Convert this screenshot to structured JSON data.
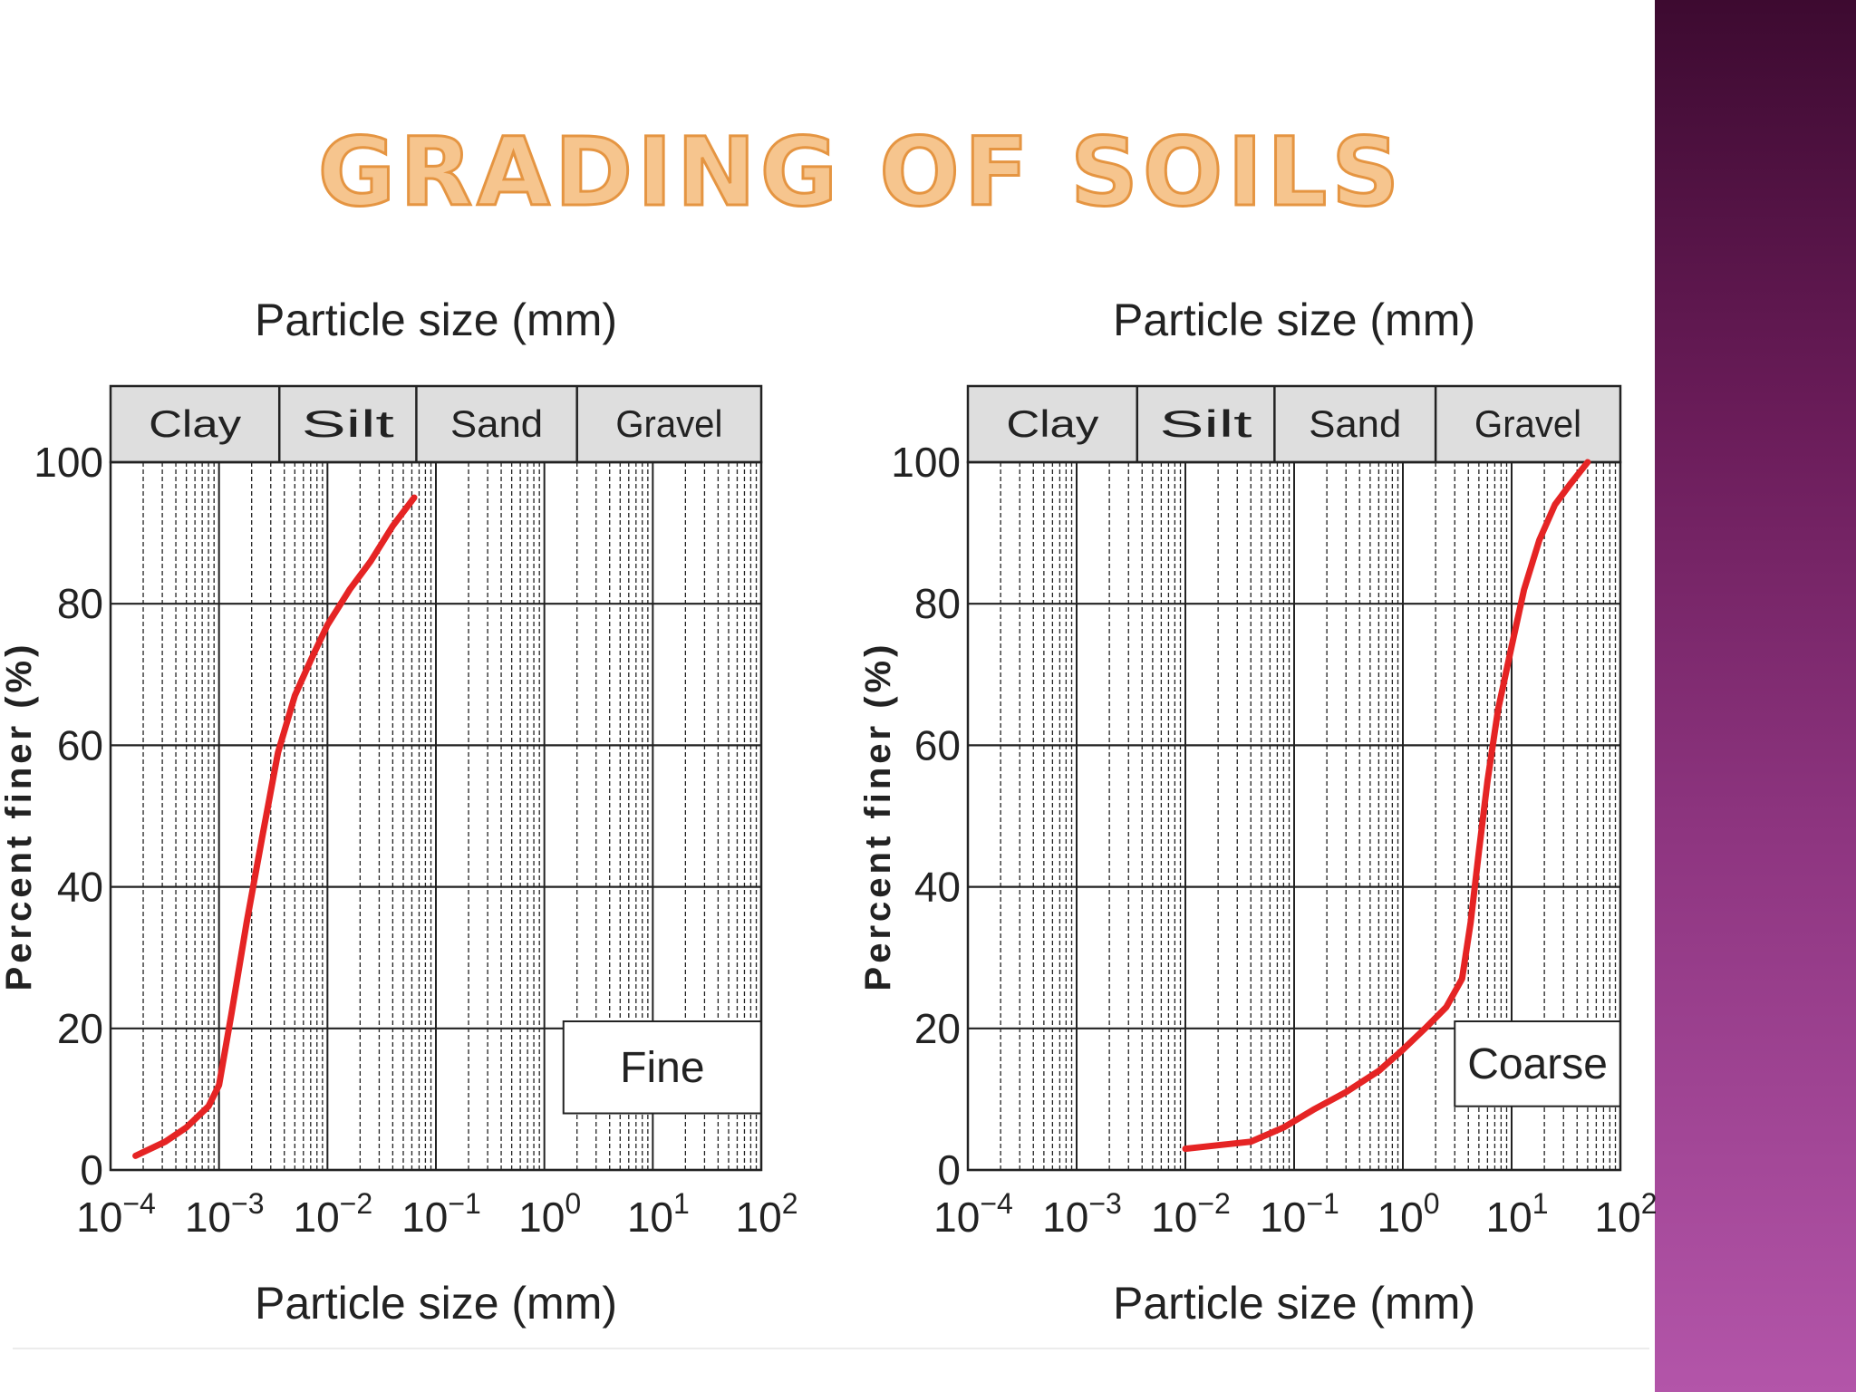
{
  "slide": {
    "title": "GRADING OF SOILS"
  },
  "colors": {
    "curve": "#e52424",
    "band_fill": "#dedede",
    "grid": "#222222",
    "accent_bar": "#8e3580",
    "title_fill": "#f6c58e",
    "title_stroke": "#e59542"
  },
  "chart_data": [
    {
      "type": "line",
      "title": "Particle size (mm)",
      "xlabel": "Particle size (mm)",
      "ylabel": "Percent finer (%)",
      "xscale": "log",
      "xlim": [
        0.0001,
        100
      ],
      "ylim": [
        0,
        100
      ],
      "x_ticks": [
        {
          "value": 0.0001,
          "base": "10",
          "exp": "−4"
        },
        {
          "value": 0.001,
          "base": "10",
          "exp": "−3"
        },
        {
          "value": 0.01,
          "base": "10",
          "exp": "−2"
        },
        {
          "value": 0.1,
          "base": "10",
          "exp": "−1"
        },
        {
          "value": 1,
          "base": "10",
          "exp": "0"
        },
        {
          "value": 10,
          "base": "10",
          "exp": "1"
        },
        {
          "value": 100,
          "base": "10",
          "exp": "2"
        }
      ],
      "y_ticks": [
        "0",
        "20",
        "40",
        "60",
        "80",
        "100"
      ],
      "y_tick_values": [
        0,
        20,
        40,
        60,
        80,
        100
      ],
      "grid": true,
      "size_classes": [
        {
          "name": "Clay",
          "from": 0.0001,
          "to": 0.0036
        },
        {
          "name": "Silt",
          "from": 0.0036,
          "to": 0.066
        },
        {
          "name": "Sand",
          "from": 0.066,
          "to": 2.0
        },
        {
          "name": "Gravel",
          "from": 2.0,
          "to": 100
        }
      ],
      "annotation": {
        "text": "Fine",
        "from_x": 1.5,
        "to_x": 100,
        "y_low": 8,
        "y_high": 21
      },
      "series": [
        {
          "x": [
            0.00017,
            0.00032,
            0.0005,
            0.0008,
            0.001,
            0.0013,
            0.0018,
            0.0025,
            0.0035,
            0.005,
            0.007,
            0.01,
            0.016,
            0.025,
            0.04,
            0.063
          ],
          "y": [
            2,
            4,
            6,
            9,
            12,
            22,
            35,
            47,
            59,
            67,
            72,
            77,
            82,
            86,
            91,
            95
          ]
        }
      ]
    },
    {
      "type": "line",
      "title": "Particle size (mm)",
      "xlabel": "Particle size (mm)",
      "ylabel": "Percent finer (%)",
      "xscale": "log",
      "xlim": [
        0.0001,
        100
      ],
      "ylim": [
        0,
        100
      ],
      "x_ticks": [
        {
          "value": 0.0001,
          "base": "10",
          "exp": "−4"
        },
        {
          "value": 0.001,
          "base": "10",
          "exp": "−3"
        },
        {
          "value": 0.01,
          "base": "10",
          "exp": "−2"
        },
        {
          "value": 0.1,
          "base": "10",
          "exp": "−1"
        },
        {
          "value": 1,
          "base": "10",
          "exp": "0"
        },
        {
          "value": 10,
          "base": "10",
          "exp": "1"
        },
        {
          "value": 100,
          "base": "10",
          "exp": "2"
        }
      ],
      "y_ticks": [
        "0",
        "20",
        "40",
        "60",
        "80",
        "100"
      ],
      "y_tick_values": [
        0,
        20,
        40,
        60,
        80,
        100
      ],
      "grid": true,
      "size_classes": [
        {
          "name": "Clay",
          "from": 0.0001,
          "to": 0.0036
        },
        {
          "name": "Silt",
          "from": 0.0036,
          "to": 0.066
        },
        {
          "name": "Sand",
          "from": 0.066,
          "to": 2.0
        },
        {
          "name": "Gravel",
          "from": 2.0,
          "to": 100
        }
      ],
      "annotation": {
        "text": "Coarse",
        "from_x": 3,
        "to_x": 100,
        "y_low": 9,
        "y_high": 21
      },
      "series": [
        {
          "x": [
            0.01,
            0.02,
            0.04,
            0.08,
            0.15,
            0.3,
            0.6,
            1.0,
            1.6,
            2.5,
            3.5,
            4.2,
            5.0,
            6.0,
            7.5,
            10,
            13,
            18,
            25,
            35,
            50
          ],
          "y": [
            3,
            3.5,
            4,
            6,
            8.5,
            11,
            14,
            17,
            20,
            23,
            27,
            35,
            45,
            55,
            65,
            74,
            82,
            89,
            94,
            97,
            100
          ]
        }
      ]
    }
  ]
}
